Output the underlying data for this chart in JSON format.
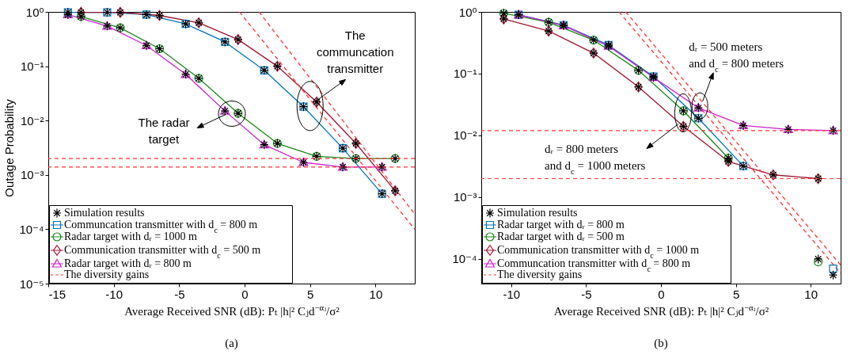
{
  "chart_data": [
    {
      "type": "line",
      "xlabel": "Average Received SNR (dB): Pₜ |h|² Cⱼd$^{−αⱼ}$/σ²",
      "ylabel": "Outage Probability",
      "xlim": [
        -15,
        13
      ],
      "xticks": [
        -15,
        -10,
        -5,
        0,
        5,
        10
      ],
      "ylim": [
        1e-05,
        1
      ],
      "yticks": [
        {
          "value": 1,
          "label": "10⁰"
        },
        {
          "value": 0.1,
          "label": "10⁻¹"
        },
        {
          "value": 0.01,
          "label": "10⁻²"
        },
        {
          "value": 0.001,
          "label": "10⁻³"
        },
        {
          "value": 0.0001,
          "label": "10⁻⁴"
        },
        {
          "value": 1e-05,
          "label": "10⁻⁵"
        }
      ],
      "log": "y",
      "grid": false,
      "legend": "bottom left",
      "series": [
        {
          "name": "Simulation results",
          "type": "scatter",
          "color": "#000000",
          "marker": "cross",
          "x": [
            -13.5,
            -10.5,
            -7.5,
            -4.5,
            -1.5,
            1.5,
            4.5,
            7.5,
            10.5,
            -12.5,
            -9.5,
            -6.5,
            -3.5,
            -0.5,
            2.5,
            5.5,
            8.5,
            11.5,
            -12.5,
            -9.5,
            -6.5,
            -3.5,
            -0.5,
            2.5,
            5.5,
            8.5,
            11.5,
            -13.5,
            -10.5,
            -7.5,
            -4.5,
            -1.5,
            1.5,
            4.5,
            7.5,
            10.5
          ],
          "values": [
            0.98,
            0.98,
            0.89,
            0.6,
            0.28,
            0.084,
            0.018,
            0.0031,
            0.00045,
            0.98,
            0.98,
            0.86,
            0.63,
            0.31,
            0.1,
            0.022,
            0.0038,
            0.00051,
            0.82,
            0.51,
            0.21,
            0.06,
            0.0136,
            0.0038,
            0.0022,
            0.002,
            0.002,
            0.89,
            0.55,
            0.24,
            0.071,
            0.015,
            0.0036,
            0.0017,
            0.0014,
            0.0014
          ]
        },
        {
          "name": "Communcation transmitter with d$_{c}$ = 800 m",
          "color": "#0072bd",
          "marker": "square",
          "x": [
            -13.5,
            -10.5,
            -7.5,
            -4.5,
            -1.5,
            1.5,
            4.5,
            7.5,
            10.5
          ],
          "values": [
            0.98,
            0.98,
            0.89,
            0.6,
            0.28,
            0.084,
            0.018,
            0.0031,
            0.00045
          ]
        },
        {
          "name": "Radar target with dᵣ = 1000 m",
          "color": "#178a17",
          "marker": "circle",
          "x": [
            -12.5,
            -9.5,
            -6.5,
            -3.5,
            -0.5,
            2.5,
            5.5,
            8.5,
            11.5
          ],
          "values": [
            0.82,
            0.51,
            0.21,
            0.06,
            0.0136,
            0.0038,
            0.0022,
            0.002,
            0.002
          ]
        },
        {
          "name": "Communication transmitter with d$_{c}$ = 500 m",
          "color": "#a2142f",
          "marker": "diamond",
          "x": [
            -12.5,
            -9.5,
            -6.5,
            -3.5,
            -0.5,
            2.5,
            5.5,
            8.5,
            11.5
          ],
          "values": [
            0.98,
            0.98,
            0.86,
            0.63,
            0.31,
            0.1,
            0.022,
            0.0038,
            0.00051
          ]
        },
        {
          "name": "Radar target with dᵣ = 800 m",
          "color": "#cc22cc",
          "marker": "triangle",
          "x": [
            -13.5,
            -10.5,
            -7.5,
            -4.5,
            -1.5,
            1.5,
            4.5,
            7.5,
            10.5
          ],
          "values": [
            0.89,
            0.55,
            0.24,
            0.071,
            0.015,
            0.0036,
            0.0017,
            0.0014,
            0.0014
          ]
        },
        {
          "name": "The diversity gains",
          "color": "#ff3333",
          "marker": "none",
          "line_style": "dashed",
          "x": [
            -0.4,
            13
          ],
          "values": [
            1,
            0.0001
          ]
        },
        {
          "color": "#ff3333",
          "marker": "none",
          "line_style": "dashed",
          "x": [
            1.1,
            13
          ],
          "values": [
            1,
            0.00019
          ]
        }
      ],
      "ref_lines": [
        {
          "axis": "y",
          "value": 0.002,
          "color": "#ff3333",
          "line_style": "dashed"
        },
        {
          "axis": "y",
          "value": 0.0014,
          "color": "#ff3333",
          "line_style": "dashed"
        }
      ],
      "annotations": [
        "The radar\ntarget",
        {
          "text": "The\ncommuncation\ntransmitter",
          "x": 5.0,
          "y": 0.0185
        },
        "(a)"
      ]
    },
    {
      "type": "line",
      "xlabel": "Average Received SNR (dB): Pₜ |h|² Cⱼd$^{−αⱼ}$/σ²",
      "xlim": [
        -12,
        12
      ],
      "xticks": [
        -10,
        -5,
        0,
        5,
        10
      ],
      "ylim": [
        4e-05,
        1
      ],
      "yticks": [
        {
          "value": 1,
          "label": "10⁰"
        },
        {
          "value": 0.1,
          "label": "10⁻¹"
        },
        {
          "value": 0.01,
          "label": "10⁻²"
        },
        {
          "value": 0.001,
          "label": "10⁻³"
        },
        {
          "value": 0.0001,
          "label": "10⁻⁴"
        }
      ],
      "log": "y",
      "grid": false,
      "legend": "bottom left",
      "series": [
        {
          "name": "Simulation results",
          "type": "scatter",
          "color": "#000000",
          "marker": "cross",
          "x": [
            -10.5,
            -7.5,
            -4.5,
            -1.5,
            1.5,
            4.5,
            10.5,
            -10.5,
            -7.5,
            -4.5,
            -1.5,
            1.5,
            4.5,
            7.5,
            10.5,
            -9.5,
            -6.5,
            -3.5,
            -0.5,
            2.5,
            5.5,
            11.5,
            -9.5,
            -6.5,
            -3.5,
            -0.5,
            2.5,
            5.5,
            8.5,
            11.5
          ],
          "values": [
            0.95,
            0.68,
            0.35,
            0.113,
            0.025,
            0.0043,
            0.0001,
            0.77,
            0.49,
            0.215,
            0.061,
            0.014,
            0.0038,
            0.0023,
            0.002,
            0.9,
            0.61,
            0.29,
            0.09,
            0.019,
            0.0032,
            5.5e-05,
            0.9,
            0.6,
            0.28,
            0.087,
            0.028,
            0.0145,
            0.0125,
            0.012
          ]
        },
        {
          "name": "Radar target with dᵣ = 800 m",
          "color": "#0072bd",
          "marker": "square",
          "x": [
            -9.5,
            -6.5,
            -3.5,
            -0.5,
            2.5,
            5.5,
            8.5,
            11.5
          ],
          "values": [
            0.9,
            0.61,
            0.29,
            0.09,
            0.019,
            0.0032,
            null,
            7e-05
          ]
        },
        {
          "name": "Radar target with dᵣ = 500 m",
          "color": "#178a17",
          "marker": "circle",
          "x": [
            -10.5,
            -7.5,
            -4.5,
            -1.5,
            1.5,
            4.5,
            7.5,
            10.5
          ],
          "values": [
            0.95,
            0.68,
            0.35,
            0.113,
            0.025,
            0.0043,
            null,
            9e-05
          ]
        },
        {
          "name": "Communication transmitter with d$_{c}$ = 1000 m",
          "color": "#a2142f",
          "marker": "diamond",
          "x": [
            -10.5,
            -7.5,
            -4.5,
            -1.5,
            1.5,
            4.5,
            7.5,
            10.5
          ],
          "values": [
            0.77,
            0.49,
            0.215,
            0.061,
            0.014,
            0.0038,
            0.0023,
            0.002
          ]
        },
        {
          "name": "Communcation transmitter with d$_{c}$ = 800 m",
          "color": "#cc22cc",
          "marker": "triangle",
          "x": [
            -9.5,
            -6.5,
            -3.5,
            -0.5,
            2.5,
            5.5,
            8.5,
            11.5
          ],
          "values": [
            0.9,
            0.6,
            0.28,
            0.087,
            0.028,
            0.0145,
            0.0125,
            0.012
          ]
        },
        {
          "name": "The diversity gains",
          "color": "#ff3333",
          "marker": "none",
          "line_style": "dashed",
          "x": [
            -2.8,
            12
          ],
          "values": [
            1,
            5.9e-05
          ]
        },
        {
          "color": "#ff3333",
          "marker": "none",
          "line_style": "dashed",
          "x": [
            -2.35,
            12
          ],
          "values": [
            1,
            8e-05
          ]
        }
      ],
      "ref_lines": [
        {
          "axis": "y",
          "value": 0.012,
          "color": "#ff3333",
          "line_style": "dashed"
        },
        {
          "axis": "y",
          "value": 0.002,
          "color": "#ff3333",
          "line_style": "dashed"
        }
      ],
      "annotations": [
        {
          "text": "dᵣ = 500 meters\nand d$_{c}$ = 800 meters",
          "x": 2.6,
          "y": 0.03
        },
        "dᵣ = 800 meters\nand d$_{c}$ = 1000 meters",
        "(b)"
      ]
    }
  ]
}
